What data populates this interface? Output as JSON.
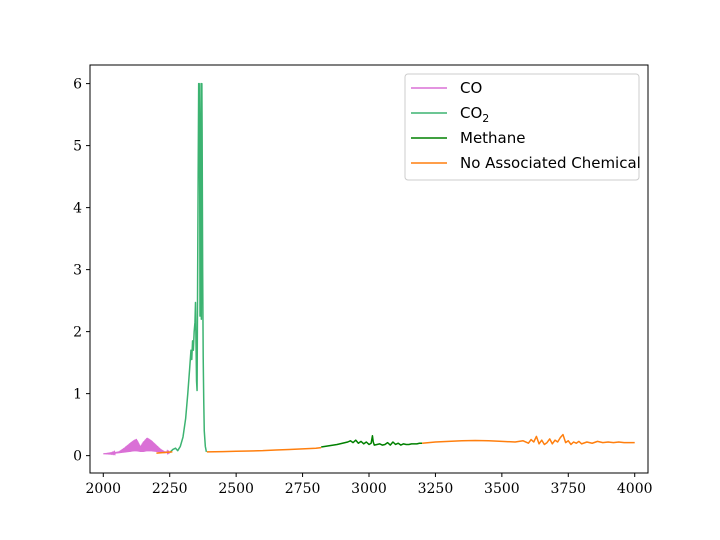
{
  "chart_data": {
    "type": "line",
    "title": "",
    "xlabel": "",
    "ylabel": "",
    "xlim": [
      1950,
      4050
    ],
    "ylim": [
      -0.28,
      6.3
    ],
    "grid": false,
    "legend_position": "top-right",
    "xticks": [
      2000,
      2250,
      2500,
      2750,
      3000,
      3250,
      3500,
      3750,
      4000
    ],
    "yticks": [
      0,
      1,
      2,
      3,
      4,
      5,
      6
    ],
    "series": [
      {
        "name": "CO",
        "legend_label": "CO",
        "color": "#da70d6",
        "style": "dense-band",
        "x": [
          2000,
          2030,
          2060,
          2080,
          2100,
          2115,
          2125,
          2140,
          2150,
          2165,
          2180,
          2200,
          2215,
          2230,
          2250
        ],
        "y_low": [
          0.03,
          0.03,
          0.04,
          0.05,
          0.06,
          0.07,
          0.07,
          0.06,
          0.06,
          0.07,
          0.07,
          0.06,
          0.05,
          0.04,
          0.05
        ],
        "y_high": [
          0.03,
          0.04,
          0.07,
          0.13,
          0.2,
          0.25,
          0.27,
          0.15,
          0.22,
          0.29,
          0.25,
          0.17,
          0.11,
          0.07,
          0.06
        ]
      },
      {
        "name": "CO2",
        "legend_label": "CO",
        "legend_subscript": "2",
        "color": "#3cb371",
        "style": "line",
        "x": [
          2250,
          2262,
          2272,
          2280,
          2290,
          2300,
          2310,
          2318,
          2325,
          2330,
          2333,
          2336,
          2339,
          2342,
          2345,
          2347,
          2349,
          2351,
          2353,
          2355,
          2357,
          2359,
          2361,
          2363,
          2364,
          2366,
          2368,
          2369,
          2371,
          2372,
          2374,
          2376,
          2378,
          2380,
          2384,
          2388
        ],
        "y": [
          0.05,
          0.1,
          0.12,
          0.08,
          0.15,
          0.3,
          0.6,
          1.0,
          1.4,
          1.7,
          1.55,
          1.85,
          1.7,
          2.0,
          2.15,
          2.47,
          1.8,
          1.2,
          1.05,
          2.8,
          4.5,
          6.0,
          6.0,
          4.2,
          2.25,
          4.8,
          6.0,
          2.2,
          6.0,
          5.2,
          3.0,
          1.6,
          0.9,
          0.4,
          0.15,
          0.06
        ]
      },
      {
        "name": "Methane",
        "legend_label": "Methane",
        "color": "#008000",
        "style": "line",
        "x": [
          2820,
          2850,
          2880,
          2900,
          2920,
          2930,
          2940,
          2950,
          2960,
          2970,
          2980,
          2990,
          3000,
          3008,
          3013,
          3016,
          3020,
          3030,
          3040,
          3050,
          3060,
          3070,
          3080,
          3090,
          3100,
          3110,
          3120,
          3130,
          3140,
          3150,
          3160,
          3170,
          3180,
          3190,
          3200
        ],
        "y": [
          0.14,
          0.16,
          0.18,
          0.2,
          0.22,
          0.24,
          0.21,
          0.25,
          0.2,
          0.23,
          0.19,
          0.22,
          0.18,
          0.2,
          0.32,
          0.22,
          0.17,
          0.18,
          0.19,
          0.17,
          0.18,
          0.21,
          0.17,
          0.22,
          0.18,
          0.2,
          0.17,
          0.19,
          0.18,
          0.18,
          0.19,
          0.19,
          0.19,
          0.2,
          0.2
        ]
      },
      {
        "name": "No Associated Chemical",
        "legend_label": "No Associated Chemical",
        "color": "#ff7f0e",
        "style": "line",
        "segments": [
          {
            "x": [
              2200,
              2230,
              2260
            ],
            "y": [
              0.04,
              0.05,
              0.06
            ]
          },
          {
            "x": [
              2390,
              2450,
              2500,
              2550,
              2600,
              2650,
              2700,
              2750,
              2800,
              2820
            ],
            "y": [
              0.06,
              0.065,
              0.07,
              0.075,
              0.08,
              0.09,
              0.1,
              0.11,
              0.12,
              0.13
            ]
          },
          {
            "x": [
              3200,
              3250,
              3300,
              3350,
              3400,
              3450,
              3500,
              3550,
              3580,
              3600,
              3610,
              3620,
              3630,
              3640,
              3650,
              3660,
              3670,
              3680,
              3690,
              3700,
              3710,
              3720,
              3730,
              3740,
              3750,
              3760,
              3770,
              3780,
              3790,
              3800,
              3820,
              3840,
              3860,
              3880,
              3900,
              3920,
              3940,
              3960,
              3980,
              4000
            ],
            "y": [
              0.2,
              0.22,
              0.23,
              0.24,
              0.245,
              0.24,
              0.23,
              0.22,
              0.24,
              0.2,
              0.26,
              0.22,
              0.31,
              0.19,
              0.25,
              0.18,
              0.21,
              0.27,
              0.19,
              0.25,
              0.22,
              0.29,
              0.34,
              0.21,
              0.24,
              0.18,
              0.22,
              0.2,
              0.23,
              0.19,
              0.22,
              0.2,
              0.23,
              0.21,
              0.22,
              0.21,
              0.22,
              0.21,
              0.21,
              0.21
            ]
          }
        ]
      }
    ]
  }
}
